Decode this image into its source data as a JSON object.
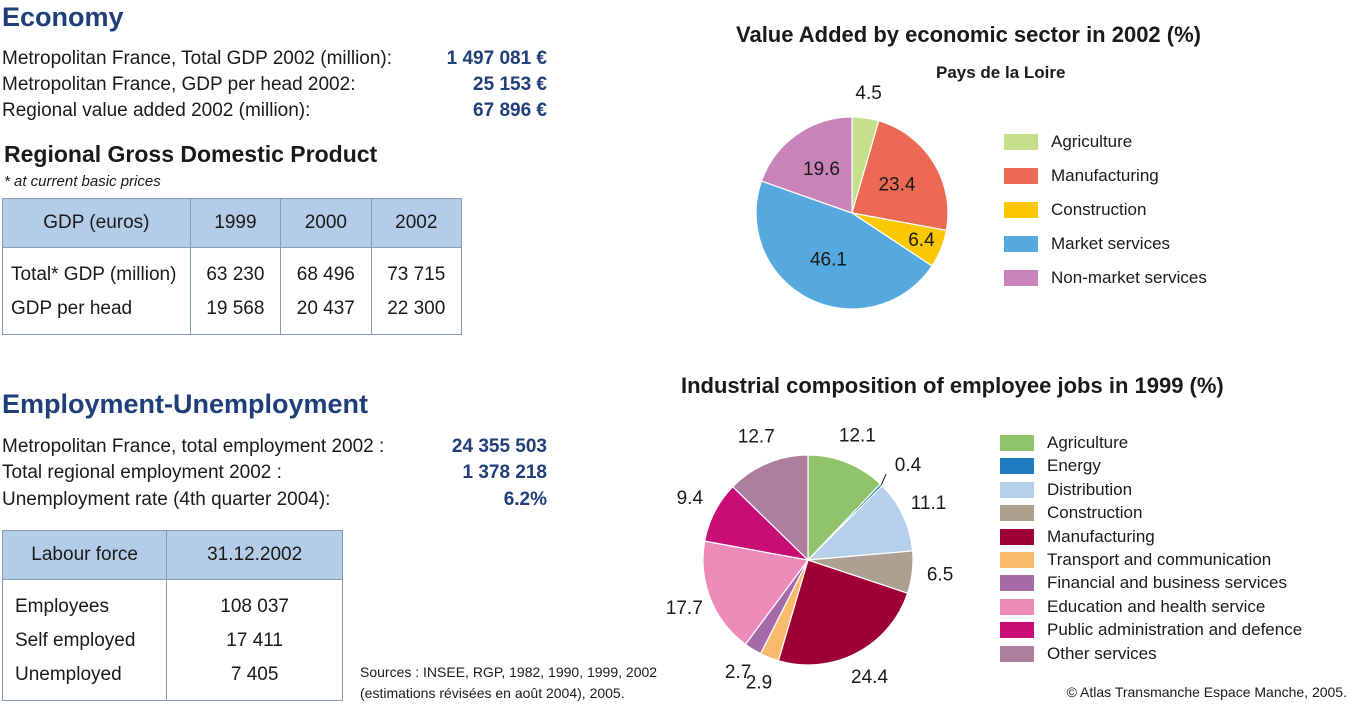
{
  "economy": {
    "title": "Economy",
    "rows": [
      {
        "label": "Metropolitan France, Total GDP 2002 (million):",
        "value": "1 497 081 €"
      },
      {
        "label": "Metropolitan France, GDP per head 2002:",
        "value": "25 153 €"
      },
      {
        "label": "Regional value added 2002 (million):",
        "value": "67 896 €"
      }
    ]
  },
  "gdp": {
    "title": "Regional Gross Domestic Product",
    "subtitle": "* at current basic prices",
    "headers": [
      "GDP (euros)",
      "1999",
      "2000",
      "2002"
    ],
    "rows": [
      [
        "Total* GDP (million)",
        "63 230",
        "68 496",
        "73 715"
      ],
      [
        "GDP per head",
        "19 568",
        "20 437",
        "22 300"
      ]
    ]
  },
  "employment": {
    "title": "Employment-Unemployment",
    "rows": [
      {
        "label": "Metropolitan France, total employment 2002 :",
        "value": "24 355 503"
      },
      {
        "label": "Total regional employment 2002 :",
        "value": "1 378 218"
      },
      {
        "label": "Unemployment rate (4th quarter 2004):",
        "value": "6.2%"
      }
    ]
  },
  "labour": {
    "headers": [
      "Labour force",
      "31.12.2002"
    ],
    "rows": [
      [
        "Employees",
        "108 037"
      ],
      [
        "Self employed",
        "17 411"
      ],
      [
        "Unemployed",
        "7 405"
      ]
    ]
  },
  "sources": {
    "line1": "Sources : INSEE, RGP, 1982, 1990, 1999, 2002",
    "line2": "(estimations révisées en août 2004), 2005."
  },
  "copyright": "© Atlas Transmanche Espace Manche, 2005.",
  "chart_data": [
    {
      "type": "pie",
      "title": "Value Added by economic sector in 2002 (%)",
      "subtitle": "Pays de la Loire",
      "legend_position": "right",
      "slices": [
        {
          "name": "Agriculture",
          "value": 4.5,
          "label": "4.5",
          "color": "#c6df8b"
        },
        {
          "name": "Manufacturing",
          "value": 23.4,
          "label": "23.4",
          "color": "#ec6a53"
        },
        {
          "name": "Construction",
          "value": 6.4,
          "label": "6.4",
          "color": "#fbc700"
        },
        {
          "name": "Market services",
          "value": 46.1,
          "label": "46.1",
          "color": "#55a9df"
        },
        {
          "name": "Non-market services",
          "value": 19.6,
          "label": "19.6",
          "color": "#c884b9"
        }
      ]
    },
    {
      "type": "pie",
      "title": "Industrial composition of employee jobs in 1999 (%)",
      "legend_position": "right",
      "slices": [
        {
          "name": "Agriculture",
          "value": 12.1,
          "label": "12.1",
          "color": "#90c46b"
        },
        {
          "name": "Energy",
          "value": 0.4,
          "label": "0.4",
          "color": "#1f7dc1"
        },
        {
          "name": "Distribution",
          "value": 11.1,
          "label": "11.1",
          "color": "#b6cfea"
        },
        {
          "name": "Construction",
          "value": 6.5,
          "label": "6.5",
          "color": "#aea091"
        },
        {
          "name": "Manufacturing",
          "value": 24.4,
          "label": "24.4",
          "color": "#9e0036"
        },
        {
          "name": "Transport and communication",
          "value": 2.9,
          "label": "2.9",
          "color": "#f9bb6b"
        },
        {
          "name": "Financial and business services",
          "value": 2.7,
          "label": "2.7",
          "color": "#a66aa8"
        },
        {
          "name": "Education and health service",
          "value": 17.7,
          "label": "17.7",
          "color": "#ed8ab8"
        },
        {
          "name": "Public administration and defence",
          "value": 9.4,
          "label": "9.4",
          "color": "#c80d77"
        },
        {
          "name": "Other services",
          "value": 12.7,
          "label": "12.7",
          "color": "#ad7e9d"
        }
      ]
    }
  ]
}
